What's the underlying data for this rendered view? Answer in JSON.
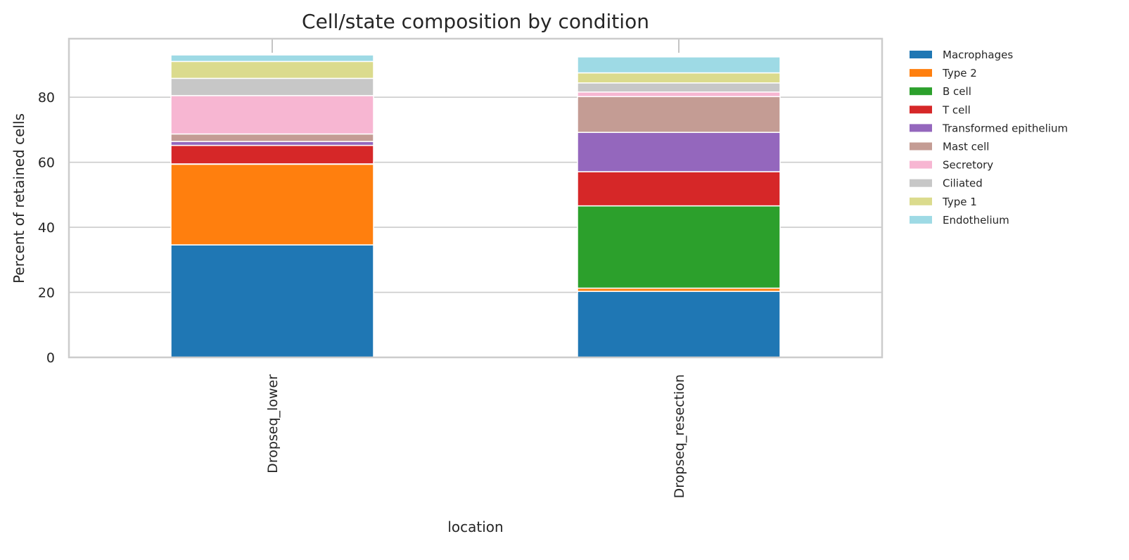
{
  "chart_data": {
    "type": "bar",
    "stacked": true,
    "title": "Cell/state composition by condition",
    "xlabel": "location",
    "ylabel": "Percent of retained cells",
    "ylim": [
      0,
      98
    ],
    "yticks": [
      0,
      20,
      40,
      60,
      80
    ],
    "grid": true,
    "legend_position": "outside-right",
    "categories": [
      "Dropseq_lower",
      "Dropseq_resection"
    ],
    "series": [
      {
        "name": "Macrophages",
        "color": "#1f77b4",
        "values": [
          34.6,
          20.3
        ]
      },
      {
        "name": "Type 2",
        "color": "#ff7f0e",
        "values": [
          24.8,
          1.0
        ]
      },
      {
        "name": "B cell",
        "color": "#2ca02c",
        "values": [
          0.1,
          25.3
        ]
      },
      {
        "name": "T cell",
        "color": "#d62728",
        "values": [
          5.7,
          10.5
        ]
      },
      {
        "name": "Transformed epithelium",
        "color": "#9467bd",
        "values": [
          1.2,
          12.1
        ]
      },
      {
        "name": "Mast cell",
        "color": "#c49c94",
        "values": [
          2.3,
          11.0
        ]
      },
      {
        "name": "Secretory",
        "color": "#f7b6d2",
        "values": [
          11.8,
          1.4
        ]
      },
      {
        "name": "Ciliated",
        "color": "#c7c7c7",
        "values": [
          5.3,
          2.8
        ]
      },
      {
        "name": "Type 1",
        "color": "#dbdb8d",
        "values": [
          5.2,
          3.1
        ]
      },
      {
        "name": "Endothelium",
        "color": "#9edae5",
        "values": [
          2.0,
          4.9
        ]
      }
    ]
  }
}
